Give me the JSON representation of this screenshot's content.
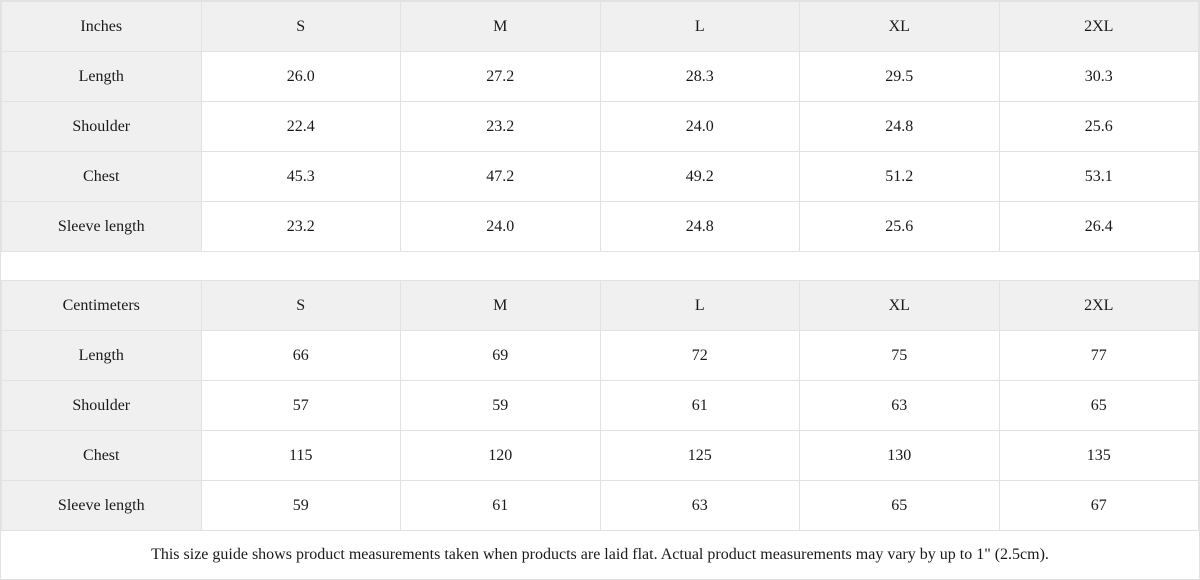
{
  "size_guide": {
    "tables": [
      {
        "unit_label": "Inches",
        "sizes": [
          "S",
          "M",
          "L",
          "XL",
          "2XL"
        ],
        "rows": [
          {
            "label": "Length",
            "values": [
              "26.0",
              "27.2",
              "28.3",
              "29.5",
              "30.3"
            ]
          },
          {
            "label": "Shoulder",
            "values": [
              "22.4",
              "23.2",
              "24.0",
              "24.8",
              "25.6"
            ]
          },
          {
            "label": "Chest",
            "values": [
              "45.3",
              "47.2",
              "49.2",
              "51.2",
              "53.1"
            ]
          },
          {
            "label": "Sleeve length",
            "values": [
              "23.2",
              "24.0",
              "24.8",
              "25.6",
              "26.4"
            ]
          }
        ]
      },
      {
        "unit_label": "Centimeters",
        "sizes": [
          "S",
          "M",
          "L",
          "XL",
          "2XL"
        ],
        "rows": [
          {
            "label": "Length",
            "values": [
              "66",
              "69",
              "72",
              "75",
              "77"
            ]
          },
          {
            "label": "Shoulder",
            "values": [
              "57",
              "59",
              "61",
              "63",
              "65"
            ]
          },
          {
            "label": "Chest",
            "values": [
              "115",
              "120",
              "125",
              "130",
              "135"
            ]
          },
          {
            "label": "Sleeve length",
            "values": [
              "59",
              "61",
              "63",
              "65",
              "67"
            ]
          }
        ]
      }
    ],
    "note": "This size guide shows product measurements taken when products are laid flat.  Actual product measurements may vary by up to 1\" (2.5cm).",
    "colors": {
      "header_bg": "#f0f0f0",
      "border": "#e2e2e2",
      "text": "#1a1a1a"
    }
  },
  "chart_data": [
    {
      "type": "table",
      "title": "Size guide (Inches)",
      "columns": [
        "Inches",
        "S",
        "M",
        "L",
        "XL",
        "2XL"
      ],
      "rows": [
        [
          "Length",
          26.0,
          27.2,
          28.3,
          29.5,
          30.3
        ],
        [
          "Shoulder",
          22.4,
          23.2,
          24.0,
          24.8,
          25.6
        ],
        [
          "Chest",
          45.3,
          47.2,
          49.2,
          51.2,
          53.1
        ],
        [
          "Sleeve length",
          23.2,
          24.0,
          24.8,
          25.6,
          26.4
        ]
      ]
    },
    {
      "type": "table",
      "title": "Size guide (Centimeters)",
      "columns": [
        "Centimeters",
        "S",
        "M",
        "L",
        "XL",
        "2XL"
      ],
      "rows": [
        [
          "Length",
          66,
          69,
          72,
          75,
          77
        ],
        [
          "Shoulder",
          57,
          59,
          61,
          63,
          65
        ],
        [
          "Chest",
          115,
          120,
          125,
          130,
          135
        ],
        [
          "Sleeve length",
          59,
          61,
          63,
          65,
          67
        ]
      ]
    }
  ]
}
